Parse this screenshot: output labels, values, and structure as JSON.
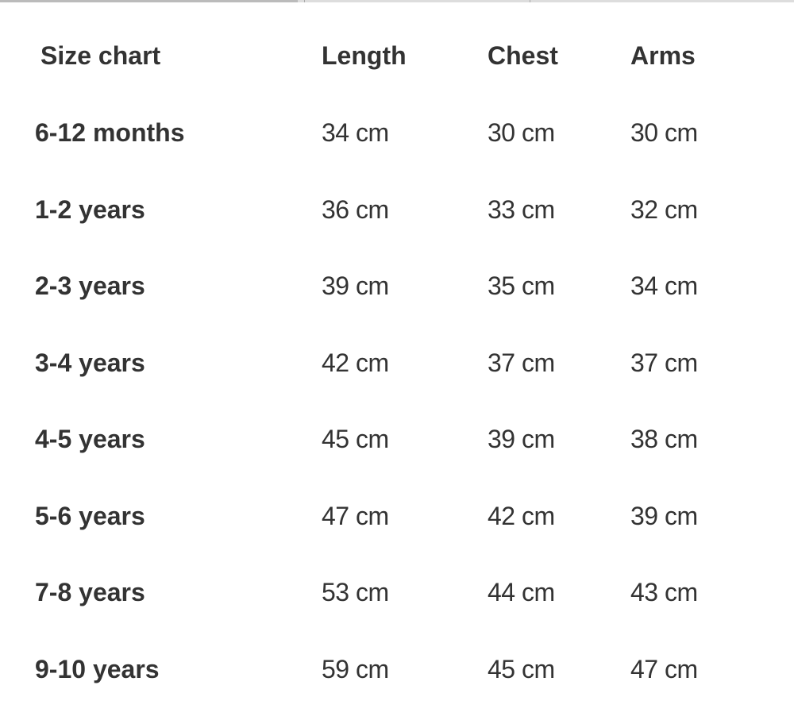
{
  "table": {
    "headers": [
      "Size chart",
      "Length",
      "Chest",
      "Arms"
    ],
    "rows": [
      [
        "6-12 months",
        "34 cm",
        "30 cm",
        "30 cm"
      ],
      [
        "1-2 years",
        "36 cm",
        "33 cm",
        "32 cm"
      ],
      [
        "2-3 years",
        "39 cm",
        "35 cm",
        "34 cm"
      ],
      [
        "3-4 years",
        "42 cm",
        "37 cm",
        "37 cm"
      ],
      [
        "4-5 years",
        "45 cm",
        "39 cm",
        "38 cm"
      ],
      [
        "5-6 years",
        "47 cm",
        "42 cm",
        "39 cm"
      ],
      [
        "7-8 years",
        "53 cm",
        "44 cm",
        "43 cm"
      ],
      [
        "9-10 years",
        "59 cm",
        "45 cm",
        "47 cm"
      ]
    ]
  }
}
